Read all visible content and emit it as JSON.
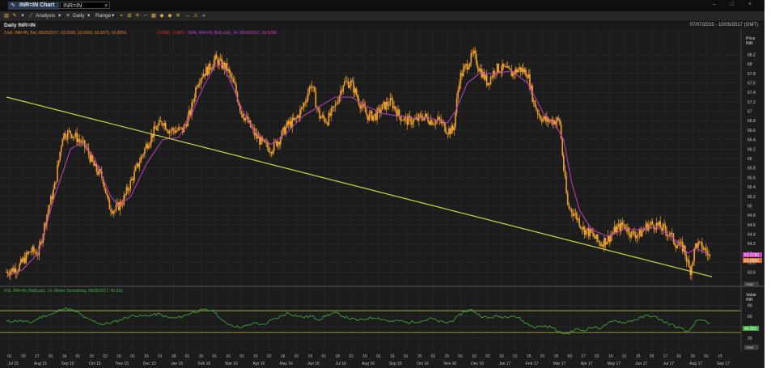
{
  "window": {
    "tab_label": "INR=IN Chart",
    "ric_value": "INR=IN",
    "controls": "–  □  ×"
  },
  "toolbar": {
    "analysis": "Analysis",
    "interval": "Daily",
    "range": "Range"
  },
  "header": {
    "title": "Daily INR=IN",
    "date_range": "07/07/2015 - 10/05/2017 (GMT)"
  },
  "price_panel": {
    "legend_ohlc": "Cndl, INR=IN, Bid, 08/28/2017, 63.9300, 63.9300, 63.8575, 63.8950,",
    "legend_change": "-0.0550, -0.09%",
    "legend_sma": "SMA, INR=IN, Bid(Last), 14, 08/28/2017, 63.9780",
    "axis_title": "Price",
    "axis_unit": "INR",
    "badge_sma": "63.9780",
    "badge_last": "63.8950",
    "zoom_label": "Auto"
  },
  "rsi_panel": {
    "legend": "RSI, INR=IN, Bid(Last), 14, Wilder Smoothing, 08/28/2017, 46.831",
    "axis_title": "Value",
    "axis_unit": "INR",
    "badge_value": "46.831",
    "zoom_label": "Auto",
    "ticks": [
      "80",
      "60",
      "40",
      "20"
    ]
  },
  "colors": {
    "candle": "#f0a030",
    "sma": "#c040c0",
    "trendline": "#c8d840",
    "rsi": "#40b040",
    "rsi_bands": "#b0c040",
    "badge_sma": "#c040c0",
    "badge_last": "#e07020",
    "badge_rsi": "#40b040"
  },
  "chart_data": {
    "type": "line",
    "price_ylim": [
      63.4,
      68.6
    ],
    "price_ticks": [
      "68.2",
      "68",
      "67.8",
      "67.6",
      "67.4",
      "67.2",
      "67",
      "66.8",
      "66.6",
      "66.4",
      "66.2",
      "66",
      "65.8",
      "65.6",
      "65.4",
      "65.2",
      "65",
      "64.8",
      "64.6",
      "64.4",
      "64.2",
      "64",
      "63.8",
      "63.6"
    ],
    "date_ticks": [
      {
        "day": "01",
        "month": "Jul 15"
      },
      {
        "day": "03",
        "month": ""
      },
      {
        "day": "17",
        "month": "Aug 15"
      },
      {
        "day": "01",
        "month": ""
      },
      {
        "day": "16",
        "month": "Sep 15"
      },
      {
        "day": "01",
        "month": ""
      },
      {
        "day": "15",
        "month": "Oct 15"
      },
      {
        "day": "02",
        "month": ""
      },
      {
        "day": "16",
        "month": "Nov 15"
      },
      {
        "day": "01",
        "month": ""
      },
      {
        "day": "15",
        "month": "Dec 15"
      },
      {
        "day": "01",
        "month": ""
      },
      {
        "day": "18",
        "month": "Jan 16"
      },
      {
        "day": "01",
        "month": ""
      },
      {
        "day": "15",
        "month": "Feb 16"
      },
      {
        "day": "01",
        "month": ""
      },
      {
        "day": "16",
        "month": "Mar 16"
      },
      {
        "day": "01",
        "month": ""
      },
      {
        "day": "15",
        "month": "Apr 16"
      },
      {
        "day": "02",
        "month": ""
      },
      {
        "day": "16",
        "month": "May 16"
      },
      {
        "day": "01",
        "month": ""
      },
      {
        "day": "15",
        "month": "Jun 16"
      },
      {
        "day": "01",
        "month": ""
      },
      {
        "day": "18",
        "month": "Jul 16"
      },
      {
        "day": "01",
        "month": ""
      },
      {
        "day": "15",
        "month": "Aug 16"
      },
      {
        "day": "01",
        "month": ""
      },
      {
        "day": "16",
        "month": "Sep 16"
      },
      {
        "day": "01",
        "month": ""
      },
      {
        "day": "15",
        "month": "Oct 16"
      },
      {
        "day": "01",
        "month": ""
      },
      {
        "day": "15",
        "month": "Nov 16"
      },
      {
        "day": "01",
        "month": ""
      },
      {
        "day": "16",
        "month": "Dec 16"
      },
      {
        "day": "02",
        "month": ""
      },
      {
        "day": "16",
        "month": "Jan 17"
      },
      {
        "day": "01",
        "month": ""
      },
      {
        "day": "15",
        "month": "Feb 17"
      },
      {
        "day": "01",
        "month": ""
      },
      {
        "day": "15",
        "month": "Mar 17"
      },
      {
        "day": "03",
        "month": ""
      },
      {
        "day": "17",
        "month": "Apr 17"
      },
      {
        "day": "01",
        "month": ""
      },
      {
        "day": "15",
        "month": "May 17"
      },
      {
        "day": "01",
        "month": ""
      },
      {
        "day": "15",
        "month": "Jun 17"
      },
      {
        "day": "03",
        "month": ""
      },
      {
        "day": "17",
        "month": "Jul 17"
      },
      {
        "day": "01",
        "month": ""
      },
      {
        "day": "15",
        "month": "Aug 17"
      },
      {
        "day": "01",
        "month": ""
      },
      {
        "day": "15",
        "month": "Sep 17"
      }
    ],
    "price_path": [
      [
        0,
        63.6
      ],
      [
        3,
        63.7
      ],
      [
        6,
        64.05
      ],
      [
        8,
        64.0
      ],
      [
        10,
        64.8
      ],
      [
        12,
        65.4
      ],
      [
        14,
        66.5
      ],
      [
        16,
        66.55
      ],
      [
        18,
        66.4
      ],
      [
        20,
        66.2
      ],
      [
        22,
        65.8
      ],
      [
        24,
        65.6
      ],
      [
        25.5,
        65.0
      ],
      [
        27,
        64.9
      ],
      [
        29,
        65.1
      ],
      [
        31,
        65.5
      ],
      [
        33,
        65.9
      ],
      [
        35,
        66.3
      ],
      [
        37,
        66.6
      ],
      [
        39,
        66.8
      ],
      [
        40.5,
        66.6
      ],
      [
        42,
        66.6
      ],
      [
        44,
        66.6
      ],
      [
        46,
        67.0
      ],
      [
        47.5,
        67.6
      ],
      [
        49,
        67.8
      ],
      [
        50.5,
        67.9
      ],
      [
        52,
        68.1
      ],
      [
        53.5,
        68.0
      ],
      [
        55,
        67.9
      ],
      [
        57,
        67.5
      ],
      [
        58.5,
        67.0
      ],
      [
        60,
        66.8
      ],
      [
        62,
        66.5
      ],
      [
        64,
        66.3
      ],
      [
        66,
        66.2
      ],
      [
        68,
        66.4
      ],
      [
        70,
        66.7
      ],
      [
        72,
        66.8
      ],
      [
        74,
        67.1
      ],
      [
        76,
        67.6
      ],
      [
        78,
        66.9
      ],
      [
        80,
        66.8
      ],
      [
        82,
        67.1
      ],
      [
        84,
        67.6
      ],
      [
        86,
        67.6
      ],
      [
        88,
        67.2
      ],
      [
        90,
        66.9
      ],
      [
        92,
        66.9
      ],
      [
        94,
        67.1
      ],
      [
        96,
        67.2
      ],
      [
        98,
        66.9
      ],
      [
        100,
        66.8
      ],
      [
        102,
        66.8
      ],
      [
        104,
        66.9
      ],
      [
        106,
        66.8
      ],
      [
        108,
        66.8
      ],
      [
        110,
        66.6
      ],
      [
        111.5,
        66.6
      ],
      [
        113,
        67.7
      ],
      [
        115,
        68.0
      ],
      [
        116.5,
        68.2
      ],
      [
        118,
        67.9
      ],
      [
        120,
        67.6
      ],
      [
        122,
        67.9
      ],
      [
        124,
        67.9
      ],
      [
        126,
        67.8
      ],
      [
        128,
        67.9
      ],
      [
        130,
        67.8
      ],
      [
        131.5,
        67.2
      ],
      [
        133,
        66.9
      ],
      [
        134.5,
        66.8
      ],
      [
        136,
        66.8
      ],
      [
        138,
        66.8
      ],
      [
        139,
        65.8
      ],
      [
        140,
        65.0
      ],
      [
        142,
        64.8
      ],
      [
        144,
        64.5
      ],
      [
        146,
        64.4
      ],
      [
        148,
        64.2
      ],
      [
        150,
        64.3
      ],
      [
        152,
        64.5
      ],
      [
        154,
        64.6
      ],
      [
        156,
        64.4
      ],
      [
        158,
        64.4
      ],
      [
        160,
        64.6
      ],
      [
        162,
        64.6
      ],
      [
        164,
        64.5
      ],
      [
        165.5,
        64.4
      ],
      [
        167,
        64.2
      ],
      [
        169,
        64.1
      ],
      [
        170.5,
        63.6
      ],
      [
        172,
        64.2
      ],
      [
        174,
        64.1
      ],
      [
        175.5,
        63.9
      ]
    ],
    "sma_path": [
      [
        0,
        63.5
      ],
      [
        4,
        63.65
      ],
      [
        8,
        64.0
      ],
      [
        12,
        65.2
      ],
      [
        16,
        66.2
      ],
      [
        19,
        66.35
      ],
      [
        22,
        66.0
      ],
      [
        26,
        65.2
      ],
      [
        28,
        65.0
      ],
      [
        31,
        65.2
      ],
      [
        35,
        65.9
      ],
      [
        39,
        66.4
      ],
      [
        43,
        66.45
      ],
      [
        46,
        66.9
      ],
      [
        49,
        67.5
      ],
      [
        52,
        67.95
      ],
      [
        54,
        68.0
      ],
      [
        56,
        67.6
      ],
      [
        59,
        67.0
      ],
      [
        62,
        66.55
      ],
      [
        66,
        66.3
      ],
      [
        70,
        66.55
      ],
      [
        74,
        66.9
      ],
      [
        78,
        67.1
      ],
      [
        82,
        67.3
      ],
      [
        86,
        67.3
      ],
      [
        90,
        67.1
      ],
      [
        94,
        66.95
      ],
      [
        98,
        66.9
      ],
      [
        102,
        66.85
      ],
      [
        106,
        66.85
      ],
      [
        110,
        66.75
      ],
      [
        112,
        67.0
      ],
      [
        115,
        67.6
      ],
      [
        118,
        67.8
      ],
      [
        122,
        67.8
      ],
      [
        126,
        67.85
      ],
      [
        130,
        67.6
      ],
      [
        134,
        66.95
      ],
      [
        137,
        66.7
      ],
      [
        139,
        66.4
      ],
      [
        141,
        65.5
      ],
      [
        143,
        64.9
      ],
      [
        146,
        64.5
      ],
      [
        150,
        64.35
      ],
      [
        154,
        64.5
      ],
      [
        158,
        64.5
      ],
      [
        162,
        64.55
      ],
      [
        166,
        64.35
      ],
      [
        170,
        64.0
      ],
      [
        172,
        64.1
      ],
      [
        175,
        63.98
      ]
    ],
    "trendline": [
      [
        0,
        67.3
      ],
      [
        176,
        63.5
      ]
    ],
    "rsi_ylim": [
      5,
      100
    ],
    "rsi_upper_band": 70,
    "rsi_lower_band": 30,
    "rsi_path": [
      [
        0,
        50
      ],
      [
        3,
        52
      ],
      [
        6,
        48
      ],
      [
        9,
        60
      ],
      [
        12,
        65
      ],
      [
        14,
        75
      ],
      [
        16,
        72
      ],
      [
        18,
        66
      ],
      [
        20,
        55
      ],
      [
        22,
        50
      ],
      [
        24,
        45
      ],
      [
        26,
        48
      ],
      [
        28,
        52
      ],
      [
        30,
        58
      ],
      [
        32,
        62
      ],
      [
        34,
        60
      ],
      [
        36,
        62
      ],
      [
        38,
        64
      ],
      [
        40,
        58
      ],
      [
        42,
        56
      ],
      [
        44,
        60
      ],
      [
        46,
        66
      ],
      [
        48,
        70
      ],
      [
        50,
        72
      ],
      [
        52,
        68
      ],
      [
        54,
        50
      ],
      [
        56,
        44
      ],
      [
        58,
        40
      ],
      [
        60,
        42
      ],
      [
        62,
        48
      ],
      [
        64,
        44
      ],
      [
        66,
        52
      ],
      [
        68,
        58
      ],
      [
        70,
        66
      ],
      [
        72,
        62
      ],
      [
        74,
        58
      ],
      [
        76,
        60
      ],
      [
        78,
        54
      ],
      [
        80,
        62
      ],
      [
        82,
        66
      ],
      [
        84,
        60
      ],
      [
        86,
        55
      ],
      [
        88,
        52
      ],
      [
        90,
        56
      ],
      [
        92,
        58
      ],
      [
        94,
        54
      ],
      [
        96,
        50
      ],
      [
        98,
        52
      ],
      [
        100,
        48
      ],
      [
        102,
        50
      ],
      [
        104,
        52
      ],
      [
        106,
        56
      ],
      [
        108,
        50
      ],
      [
        110,
        48
      ],
      [
        112,
        55
      ],
      [
        114,
        68
      ],
      [
        116,
        72
      ],
      [
        118,
        62
      ],
      [
        120,
        56
      ],
      [
        122,
        60
      ],
      [
        124,
        58
      ],
      [
        126,
        62
      ],
      [
        128,
        56
      ],
      [
        130,
        45
      ],
      [
        132,
        40
      ],
      [
        134,
        42
      ],
      [
        136,
        40
      ],
      [
        138,
        30
      ],
      [
        140,
        28
      ],
      [
        142,
        36
      ],
      [
        144,
        34
      ],
      [
        146,
        40
      ],
      [
        148,
        38
      ],
      [
        150,
        46
      ],
      [
        152,
        52
      ],
      [
        154,
        48
      ],
      [
        156,
        52
      ],
      [
        158,
        56
      ],
      [
        160,
        62
      ],
      [
        162,
        58
      ],
      [
        164,
        50
      ],
      [
        166,
        44
      ],
      [
        168,
        38
      ],
      [
        170,
        30
      ],
      [
        172,
        50
      ],
      [
        174,
        52
      ],
      [
        175.5,
        46.8
      ]
    ]
  }
}
